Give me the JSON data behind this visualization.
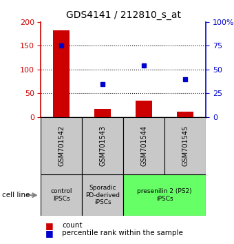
{
  "title": "GDS4141 / 212810_s_at",
  "samples": [
    "GSM701542",
    "GSM701543",
    "GSM701544",
    "GSM701545"
  ],
  "counts": [
    183,
    17,
    35,
    12
  ],
  "percentile_ranks": [
    75,
    35,
    54,
    40
  ],
  "ylim_left": [
    0,
    200
  ],
  "ylim_right": [
    0,
    100
  ],
  "yticks_left": [
    0,
    50,
    100,
    150,
    200
  ],
  "yticks_right": [
    0,
    25,
    50,
    75,
    100
  ],
  "ytick_labels_left": [
    "0",
    "50",
    "100",
    "150",
    "200"
  ],
  "ytick_labels_right": [
    "0",
    "25",
    "50",
    "75",
    "100%"
  ],
  "bar_color": "#cc0000",
  "dot_color": "#0000cc",
  "bar_width": 0.4,
  "sample_area_color": "#c8c8c8",
  "group_info": [
    {
      "label": "control\nIPSCs",
      "start": 0,
      "end": 1,
      "color": "#c8c8c8"
    },
    {
      "label": "Sporadic\nPD-derived\niPSCs",
      "start": 1,
      "end": 2,
      "color": "#c8c8c8"
    },
    {
      "label": "presenilin 2 (PS2)\niPSCs",
      "start": 2,
      "end": 4,
      "color": "#66ff66"
    }
  ],
  "cell_line_label": "cell line",
  "legend_count_label": "count",
  "legend_pct_label": "percentile rank within the sample",
  "title_fontsize": 10,
  "tick_fontsize": 8,
  "sample_fontsize": 7,
  "group_fontsize": 6.5,
  "legend_fontsize": 7.5
}
